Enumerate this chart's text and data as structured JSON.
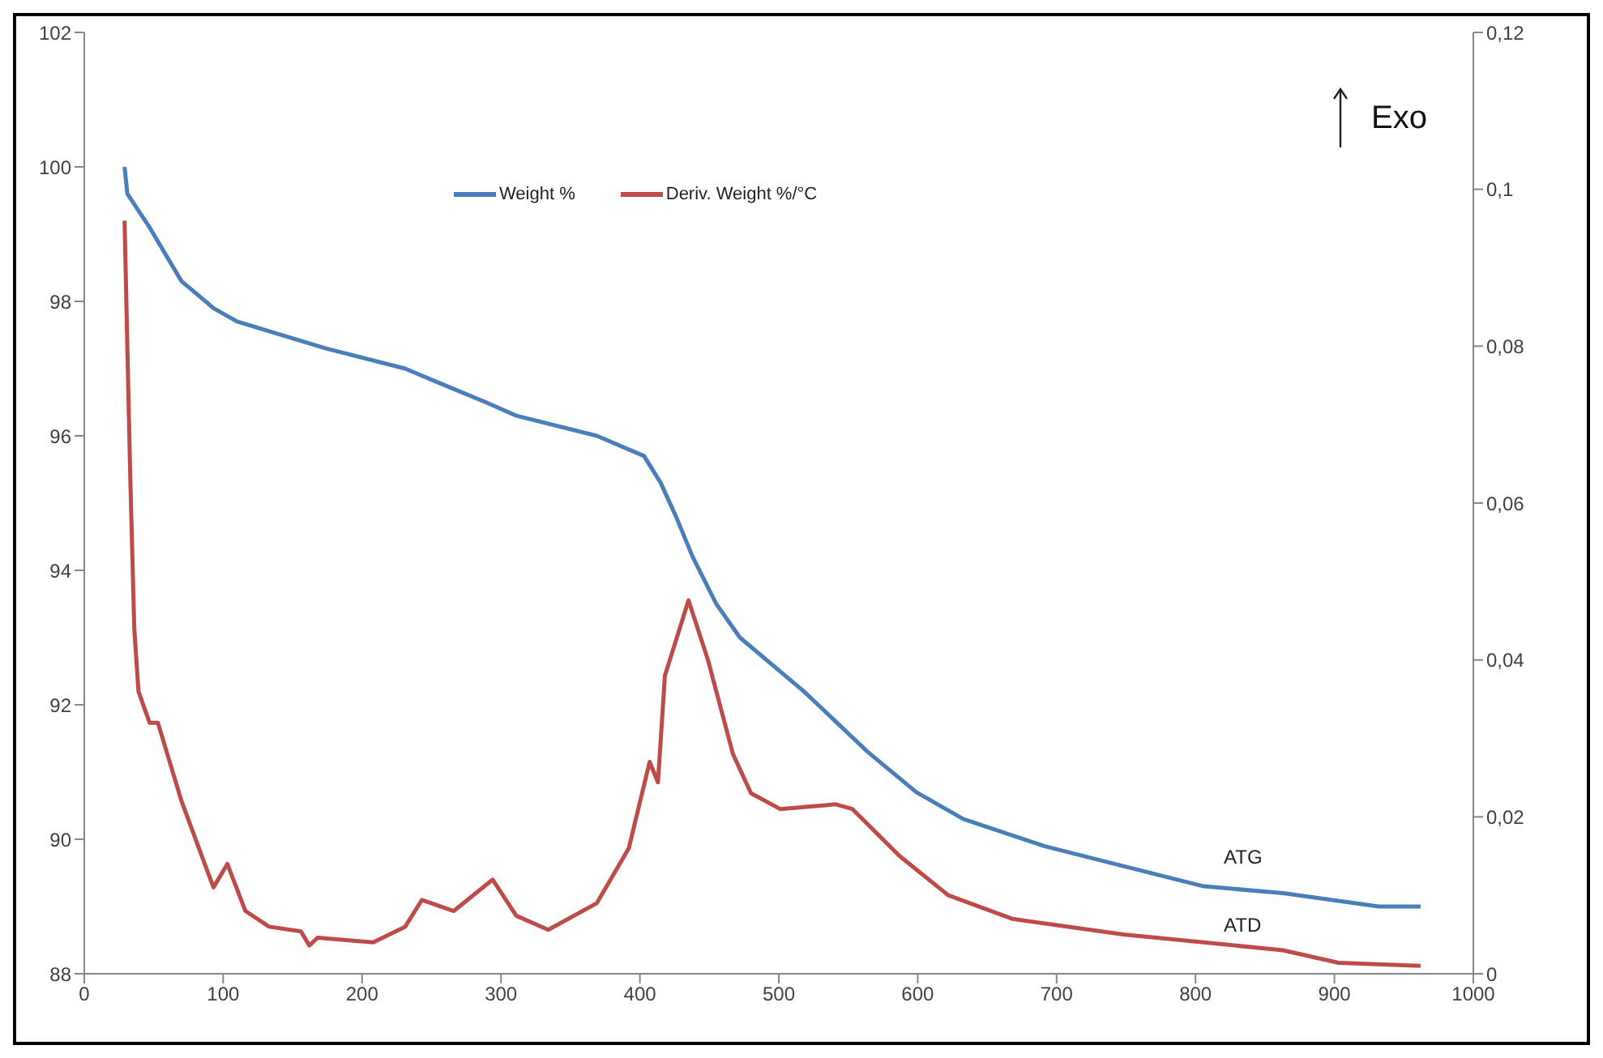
{
  "chart_data": {
    "type": "line",
    "xlim": [
      0,
      1000
    ],
    "xticks": [
      0,
      100,
      200,
      300,
      400,
      500,
      600,
      700,
      800,
      900,
      1000
    ],
    "ylim": [
      88,
      102
    ],
    "yticks": [
      88,
      90,
      92,
      94,
      96,
      98,
      100,
      102
    ],
    "y2lim": [
      0,
      0.12
    ],
    "y2ticks": [
      0,
      {
        "value": 0.02,
        "label": "0,02"
      },
      {
        "value": 0.04,
        "label": "0,04"
      },
      {
        "value": 0.06,
        "label": "0,06"
      },
      {
        "value": 0.08,
        "label": "0,08"
      },
      {
        "value": 0.1,
        "label": "0,1"
      },
      {
        "value": 0.12,
        "label": "0,12"
      }
    ],
    "legend": "top",
    "grid": false,
    "marker": "none",
    "line_style": "solid",
    "series": [
      {
        "name": "Weight %",
        "color": "#4a7ebb",
        "x": [
          29,
          31,
          47,
          70,
          93,
          110,
          174,
          231,
          254,
          289,
          311,
          369,
          403,
          415,
          426,
          438,
          455,
          472,
          518,
          564,
          599,
          633,
          691,
          748,
          806,
          863,
          932,
          962
        ],
        "values": [
          100.0,
          99.6,
          99.1,
          98.3,
          97.9,
          97.7,
          97.3,
          97.0,
          96.8,
          96.5,
          96.3,
          96.0,
          95.7,
          95.3,
          94.8,
          94.2,
          93.5,
          93.0,
          92.2,
          91.3,
          90.7,
          90.3,
          89.9,
          89.6,
          89.3,
          89.2,
          89.0,
          89.0
        ]
      },
      {
        "name": "Deriv. Weight %/°C",
        "color": "#be4b48",
        "axis": "y2",
        "x": [
          29,
          33,
          36,
          39,
          47,
          53,
          70,
          93,
          103,
          116,
          133,
          156,
          162,
          168,
          208,
          231,
          243,
          266,
          294,
          311,
          334,
          369,
          392,
          407,
          413,
          418,
          435,
          449,
          467,
          480,
          501,
          541,
          553,
          587,
          622,
          668,
          748,
          863,
          903,
          962
        ],
        "values": [
          0.096,
          0.064,
          0.044,
          0.036,
          0.032,
          0.032,
          0.022,
          0.011,
          0.014,
          0.008,
          0.006,
          0.0054,
          0.0036,
          0.0046,
          0.004,
          0.006,
          0.0094,
          0.008,
          0.012,
          0.0074,
          0.0056,
          0.009,
          0.016,
          0.027,
          0.0244,
          0.038,
          0.0476,
          0.04,
          0.028,
          0.023,
          0.021,
          0.0216,
          0.021,
          0.015,
          0.01,
          0.007,
          0.005,
          0.003,
          0.0014,
          0.001
        ]
      }
    ],
    "annotations": [
      "Exo",
      "ATG",
      "ATD"
    ]
  }
}
